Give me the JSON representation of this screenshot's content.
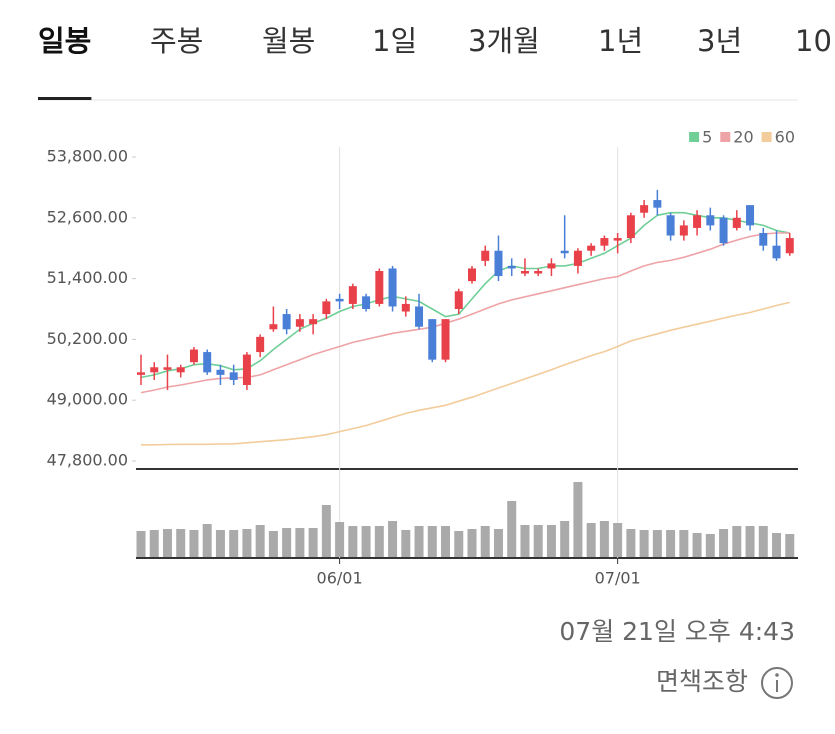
{
  "tabs": [
    "일봉",
    "주봉",
    "월봉",
    "1일",
    "3개월",
    "1년",
    "3년",
    "10"
  ],
  "active_tab": 0,
  "chart_data": {
    "type": "candlestick",
    "categories": [
      null,
      null,
      null,
      null,
      null,
      null,
      null,
      null,
      null,
      null,
      null,
      null,
      null,
      null,
      null,
      "06/01",
      null,
      null,
      null,
      null,
      null,
      null,
      null,
      null,
      null,
      null,
      null,
      null,
      null,
      null,
      null,
      null,
      null,
      null,
      null,
      null,
      "07/01",
      null,
      null,
      null,
      null,
      null,
      null,
      null,
      null,
      null,
      null,
      null,
      null,
      null
    ],
    "open": [
      49500,
      49550,
      49600,
      49550,
      49750,
      49950,
      49600,
      49550,
      49300,
      49950,
      50400,
      50700,
      50450,
      50500,
      50700,
      51000,
      50900,
      51050,
      50900,
      51600,
      50750,
      50850,
      50600,
      49800,
      50800,
      51350,
      51750,
      51950,
      51650,
      51500,
      51500,
      51600,
      51950,
      51650,
      51950,
      52050,
      52150,
      52200,
      52700,
      52950,
      52650,
      52250,
      52400,
      52650,
      52600,
      52400,
      52850,
      52300,
      52050,
      51900
    ],
    "high": [
      49900,
      49750,
      49900,
      49700,
      50050,
      50000,
      49700,
      49700,
      49950,
      50300,
      50850,
      50800,
      50700,
      50700,
      51000,
      51100,
      51300,
      51100,
      51600,
      51650,
      51050,
      51100,
      50600,
      50600,
      51200,
      51650,
      52050,
      52250,
      51800,
      51800,
      51600,
      51800,
      52650,
      52000,
      52100,
      52250,
      52300,
      52700,
      52950,
      53150,
      52700,
      52550,
      52750,
      52800,
      52650,
      52750,
      52850,
      52400,
      52350,
      52300
    ],
    "low": [
      49300,
      49400,
      49200,
      49450,
      49700,
      49500,
      49300,
      49300,
      49200,
      49850,
      50350,
      50300,
      50350,
      50300,
      50600,
      50800,
      50800,
      50750,
      50850,
      50750,
      50650,
      50400,
      49750,
      49750,
      50700,
      51300,
      51650,
      51350,
      51450,
      51450,
      51450,
      51450,
      51800,
      51500,
      51850,
      51950,
      51900,
      52100,
      52600,
      52650,
      52150,
      52150,
      52250,
      52350,
      52050,
      52350,
      52350,
      51950,
      51750,
      51850
    ],
    "close": [
      49550,
      49650,
      49650,
      49650,
      50000,
      49550,
      49500,
      49400,
      49900,
      50250,
      50500,
      50400,
      50600,
      50600,
      50950,
      50950,
      51250,
      50800,
      51550,
      50850,
      50900,
      50450,
      49800,
      50600,
      51150,
      51600,
      51950,
      51450,
      51600,
      51550,
      51550,
      51700,
      51900,
      51950,
      52050,
      52200,
      52200,
      52650,
      52850,
      52800,
      52250,
      52450,
      52650,
      52450,
      52100,
      52600,
      52450,
      52050,
      51800,
      52200
    ],
    "up_color": "#e8414a",
    "down_color": "#4a7fd8",
    "ylim": [
      47800,
      53800
    ],
    "yticks": [
      {
        "value": 47800,
        "label": "47,800.00"
      },
      {
        "value": 49000,
        "label": "49,000.00"
      },
      {
        "value": 50200,
        "label": "50,200.00"
      },
      {
        "value": 51400,
        "label": "51,400.00"
      },
      {
        "value": 52600,
        "label": "52,600.00"
      },
      {
        "value": 53800,
        "label": "53,800.00"
      }
    ],
    "grid": "x",
    "legend_position": "top-right",
    "series": [
      {
        "name": "5",
        "color": "#6fcf97",
        "values": [
          49450,
          49500,
          49580,
          49620,
          49700,
          49720,
          49680,
          49600,
          49620,
          49780,
          50000,
          50200,
          50400,
          50520,
          50620,
          50750,
          50850,
          50900,
          50980,
          51050,
          51000,
          50950,
          50800,
          50650,
          50700,
          51000,
          51300,
          51550,
          51650,
          51600,
          51600,
          51650,
          51650,
          51700,
          51800,
          51900,
          52050,
          52200,
          52450,
          52650,
          52700,
          52700,
          52650,
          52600,
          52600,
          52550,
          52500,
          52450,
          52350,
          52300
        ]
      },
      {
        "name": "20",
        "color": "#eea3a7",
        "values": [
          49150,
          49200,
          49260,
          49300,
          49350,
          49400,
          49430,
          49440,
          49450,
          49500,
          49600,
          49700,
          49800,
          49900,
          49980,
          50060,
          50140,
          50200,
          50260,
          50320,
          50360,
          50400,
          50440,
          50520,
          50600,
          50700,
          50800,
          50900,
          50980,
          51040,
          51100,
          51160,
          51220,
          51280,
          51340,
          51400,
          51440,
          51550,
          51650,
          51720,
          51760,
          51820,
          51900,
          51980,
          52080,
          52160,
          52230,
          52280,
          52300,
          52300
        ]
      },
      {
        "name": "60",
        "color": "#f3cc9b",
        "values": [
          48120,
          48120,
          48125,
          48130,
          48130,
          48130,
          48135,
          48140,
          48160,
          48180,
          48200,
          48220,
          48250,
          48280,
          48320,
          48380,
          48440,
          48500,
          48580,
          48660,
          48740,
          48800,
          48850,
          48900,
          48980,
          49060,
          49150,
          49240,
          49330,
          49420,
          49510,
          49600,
          49700,
          49790,
          49880,
          49960,
          50060,
          50170,
          50240,
          50310,
          50380,
          50440,
          50500,
          50560,
          50620,
          50680,
          50730,
          50800,
          50870,
          50930
        ]
      }
    ],
    "volume": {
      "color": "#aaaaaa",
      "ylim": [
        0,
        88
      ],
      "values": [
        26,
        27,
        28,
        28,
        27,
        33,
        27,
        27,
        28,
        32,
        26,
        29,
        29,
        29,
        52,
        35,
        31,
        31,
        31,
        36,
        27,
        31,
        31,
        31,
        26,
        28,
        31,
        28,
        56,
        32,
        32,
        32,
        36,
        75,
        34,
        36,
        34,
        28,
        27,
        27,
        27,
        27,
        24,
        23,
        28,
        31,
        31,
        31,
        24,
        23
      ]
    }
  },
  "updated": "07월 21일 오후 4:43",
  "disclaimer": "면책조항"
}
